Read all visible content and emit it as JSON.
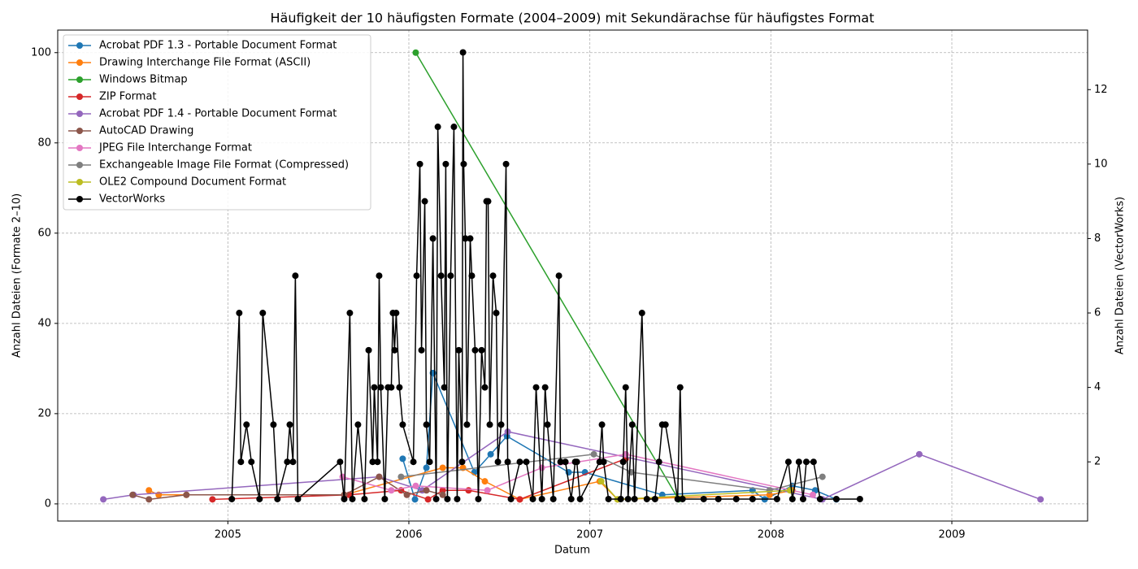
{
  "chart_data": {
    "type": "line",
    "title": "Häufigkeit der 10 häufigsten Formate (2004–2009) mit Sekundärachse für häufigstes Format",
    "x_label": "Datum",
    "y_label": "Anzahl Dateien (Formate 2–10)",
    "y2_label": "Anzahl Dateien (VectorWorks)",
    "xlim": [
      2004.06,
      2009.75
    ],
    "xticks": [
      2005,
      2006,
      2007,
      2008,
      2009
    ],
    "ylim": [
      -3.8,
      105
    ],
    "yticks": [
      0,
      20,
      40,
      60,
      80,
      100
    ],
    "y2lim": [
      0.41,
      13.6
    ],
    "y2ticks": [
      2,
      4,
      6,
      8,
      10,
      12
    ],
    "grid": true,
    "legend": "upper left",
    "series": [
      {
        "name": "Acrobat PDF 1.3 - Portable Document Format",
        "color": "#1f77b4",
        "x": [
          2005.966,
          2006.034,
          2006.097,
          2006.133,
          2006.362,
          2006.452,
          2006.542,
          2006.883,
          2006.973,
          2007.4,
          2007.899,
          2007.966,
          2008.119,
          2008.245,
          2008.362
        ],
        "values": [
          10,
          1,
          8,
          29,
          7,
          11,
          15,
          7,
          7,
          2,
          3,
          1,
          4,
          3,
          1
        ]
      },
      {
        "name": "Drawing Interchange File Format (ASCII)",
        "color": "#ff7f0e",
        "x": [
          2004.564,
          2004.618,
          2004.771,
          2005.643,
          2006.187,
          2006.299,
          2006.42,
          2006.613,
          2007.054,
          2007.153,
          2007.993,
          2008.119
        ],
        "values": [
          3,
          2,
          2,
          2,
          8,
          8,
          5,
          1,
          5,
          1,
          2,
          3
        ]
      },
      {
        "name": "Windows Bitmap",
        "color": "#2ca02c",
        "x": [
          2006.038,
          2007.49
        ],
        "values": [
          100,
          1
        ]
      },
      {
        "name": "ZIP Format",
        "color": "#d62728",
        "x": [
          2004.915,
          2005.67,
          2005.957,
          2006.106,
          2006.187,
          2006.33,
          2006.613,
          2007.198
        ],
        "values": [
          1,
          2,
          3,
          1,
          3,
          3,
          1,
          10
        ]
      },
      {
        "name": "Acrobat PDF 1.4 - Portable Document Format",
        "color": "#9467bd",
        "x": [
          2004.312,
          2004.479,
          2005.836,
          2006.074,
          2006.546,
          2008.285,
          2008.82,
          2009.49
        ],
        "values": [
          1,
          2,
          6,
          3,
          16,
          1,
          11,
          1
        ]
      },
      {
        "name": "AutoCAD Drawing",
        "color": "#8c564b",
        "x": [
          2004.474,
          2004.564,
          2004.771,
          2005.643,
          2005.836,
          2005.989,
          2006.097,
          2006.187
        ],
        "values": [
          2,
          1,
          2,
          2,
          6,
          2,
          3,
          2
        ]
      },
      {
        "name": "JPEG File Interchange Format",
        "color": "#e377c2",
        "x": [
          2005.634,
          2005.903,
          2006.038,
          2006.434,
          2006.735,
          2007.198,
          2008.232
        ],
        "values": [
          6,
          3,
          4,
          3,
          8,
          11,
          2
        ]
      },
      {
        "name": "Exchangeable Image File Format (Compressed)",
        "color": "#7f7f7f",
        "x": [
          2005.957,
          2007.022,
          2007.229,
          2007.993,
          2008.285
        ],
        "values": [
          6,
          11,
          7,
          3,
          6
        ]
      },
      {
        "name": "OLE2 Compound Document Format",
        "color": "#bcbd22",
        "x": [
          2007.063,
          2007.153,
          2008.106
        ],
        "values": [
          5,
          1,
          3
        ]
      },
      {
        "name": "VectorWorks",
        "color": "#000000",
        "axis": "y2",
        "x": [
          2005.022,
          2005.063,
          2005.072,
          2005.103,
          2005.13,
          2005.175,
          2005.193,
          2005.252,
          2005.274,
          2005.328,
          2005.342,
          2005.36,
          2005.373,
          2005.387,
          2005.62,
          2005.643,
          2005.674,
          2005.688,
          2005.719,
          2005.755,
          2005.778,
          2005.8,
          2005.809,
          2005.827,
          2005.836,
          2005.845,
          2005.867,
          2005.885,
          2005.903,
          2005.912,
          2005.921,
          2005.93,
          2005.948,
          2005.966,
          2006.025,
          2006.043,
          2006.061,
          2006.07,
          2006.088,
          2006.097,
          2006.115,
          2006.133,
          2006.151,
          2006.16,
          2006.178,
          2006.196,
          2006.204,
          2006.213,
          2006.231,
          2006.249,
          2006.267,
          2006.276,
          2006.294,
          2006.299,
          2006.303,
          2006.312,
          2006.321,
          2006.339,
          2006.348,
          2006.366,
          2006.384,
          2006.402,
          2006.42,
          2006.429,
          2006.438,
          2006.447,
          2006.465,
          2006.483,
          2006.492,
          2006.51,
          2006.537,
          2006.546,
          2006.564,
          2006.613,
          2006.649,
          2006.685,
          2006.703,
          2006.735,
          2006.753,
          2006.766,
          2006.798,
          2006.829,
          2006.838,
          2006.865,
          2006.897,
          2006.919,
          2006.928,
          2006.946,
          2007.054,
          2007.067,
          2007.076,
          2007.103,
          2007.171,
          2007.184,
          2007.198,
          2007.211,
          2007.234,
          2007.247,
          2007.288,
          2007.315,
          2007.36,
          2007.382,
          2007.4,
          2007.418,
          2007.485,
          2007.499,
          2007.512,
          2007.629,
          2007.71,
          2007.809,
          2007.899,
          2008.034,
          2008.097,
          2008.119,
          2008.155,
          2008.178,
          2008.196,
          2008.236,
          2008.272,
          2008.362,
          2008.492
        ],
        "values": [
          1,
          6,
          2,
          3,
          2,
          1,
          6,
          3,
          1,
          2,
          3,
          2,
          7,
          1,
          2,
          1,
          6,
          1,
          3,
          1,
          5,
          2,
          4,
          2,
          7,
          4,
          1,
          4,
          4,
          6,
          5,
          6,
          4,
          3,
          2,
          7,
          10,
          5,
          9,
          3,
          2,
          8,
          1,
          11,
          7,
          4,
          10,
          1,
          7,
          11,
          1,
          5,
          2,
          13,
          10,
          8,
          3,
          8,
          7,
          5,
          1,
          5,
          4,
          9,
          9,
          3,
          7,
          6,
          2,
          3,
          10,
          2,
          1,
          2,
          2,
          1,
          4,
          1,
          4,
          3,
          1,
          7,
          2,
          2,
          1,
          2,
          2,
          1,
          2,
          3,
          2,
          1,
          1,
          2,
          4,
          1,
          3,
          1,
          6,
          1,
          1,
          2,
          3,
          3,
          1,
          4,
          1,
          1,
          1,
          1,
          1,
          1,
          2,
          1,
          2,
          1,
          2,
          2,
          1,
          1,
          1
        ]
      }
    ]
  }
}
